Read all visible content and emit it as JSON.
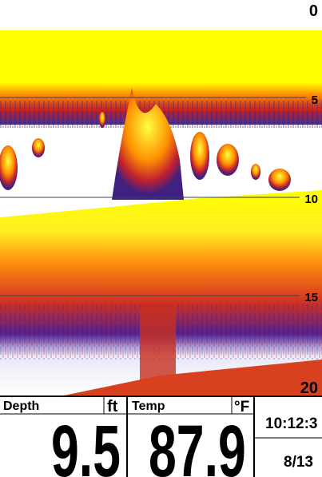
{
  "sonar": {
    "scale": [
      "0",
      "5",
      "10",
      "15",
      "20"
    ]
  },
  "panel": {
    "depth_label": "Depth",
    "depth_unit": "ft",
    "depth_value": "9.5",
    "temp_label": "Temp",
    "temp_unit": "°F",
    "temp_value": "87.9",
    "time": "10:12:3",
    "date": "8/13"
  }
}
